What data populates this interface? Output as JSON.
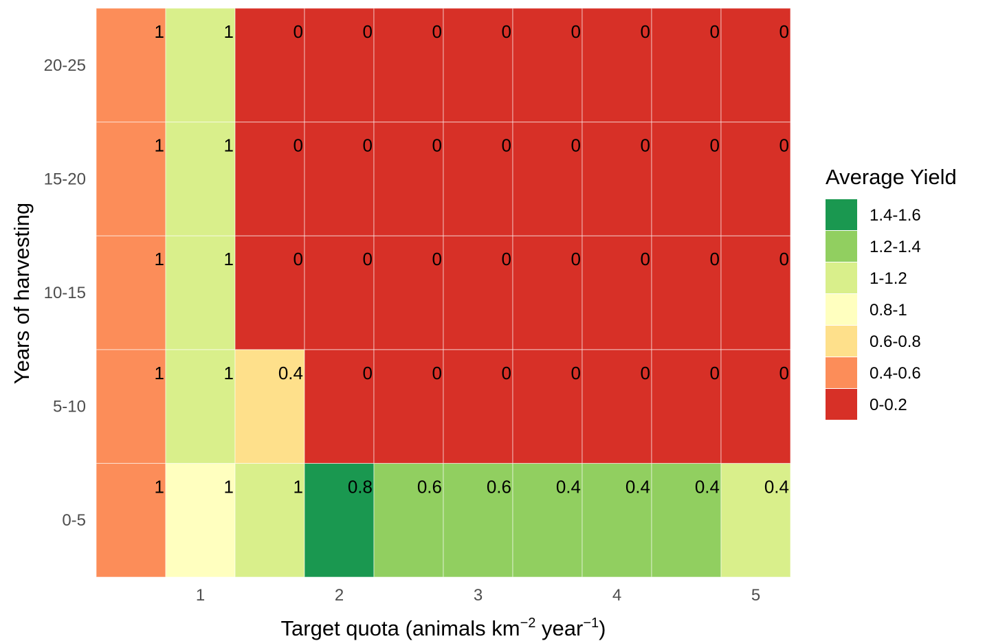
{
  "chart_data": {
    "type": "heatmap",
    "xlabel": {
      "base": "Target quota (animals km",
      "sup1": "−2",
      "mid": " year",
      "sup2": "−1",
      "end": ")"
    },
    "ylabel": "Years of harvesting",
    "x_ticks": [
      "1",
      "2",
      "3",
      "4",
      "5"
    ],
    "x_tick_values": [
      1,
      2,
      3,
      4,
      5
    ],
    "x_values": [
      0.5,
      1,
      1.5,
      2,
      2.5,
      3,
      3.5,
      4,
      4.5,
      5
    ],
    "y_categories": [
      "0-5",
      "5-10",
      "10-15",
      "15-20",
      "20-25"
    ],
    "rows": [
      {
        "y": "0-5",
        "labels": [
          "1",
          "1",
          "1",
          "0.8",
          "0.6",
          "0.6",
          "0.4",
          "0.4",
          "0.4",
          "0.4"
        ],
        "bins": [
          "0.4-0.6",
          "0.8-1",
          "1-1.2",
          "1.4-1.6",
          "1.2-1.4",
          "1.2-1.4",
          "1.2-1.4",
          "1.2-1.4",
          "1.2-1.4",
          "1-1.2"
        ]
      },
      {
        "y": "5-10",
        "labels": [
          "1",
          "1",
          "0.4",
          "0",
          "0",
          "0",
          "0",
          "0",
          "0",
          "0"
        ],
        "bins": [
          "0.4-0.6",
          "1-1.2",
          "0.6-0.8",
          "0-0.2",
          "0-0.2",
          "0-0.2",
          "0-0.2",
          "0-0.2",
          "0-0.2",
          "0-0.2"
        ]
      },
      {
        "y": "10-15",
        "labels": [
          "1",
          "1",
          "0",
          "0",
          "0",
          "0",
          "0",
          "0",
          "0",
          "0"
        ],
        "bins": [
          "0.4-0.6",
          "1-1.2",
          "0-0.2",
          "0-0.2",
          "0-0.2",
          "0-0.2",
          "0-0.2",
          "0-0.2",
          "0-0.2",
          "0-0.2"
        ]
      },
      {
        "y": "15-20",
        "labels": [
          "1",
          "1",
          "0",
          "0",
          "0",
          "0",
          "0",
          "0",
          "0",
          "0"
        ],
        "bins": [
          "0.4-0.6",
          "1-1.2",
          "0-0.2",
          "0-0.2",
          "0-0.2",
          "0-0.2",
          "0-0.2",
          "0-0.2",
          "0-0.2",
          "0-0.2"
        ]
      },
      {
        "y": "20-25",
        "labels": [
          "1",
          "1",
          "0",
          "0",
          "0",
          "0",
          "0",
          "0",
          "0",
          "0"
        ],
        "bins": [
          "0.4-0.6",
          "1-1.2",
          "0-0.2",
          "0-0.2",
          "0-0.2",
          "0-0.2",
          "0-0.2",
          "0-0.2",
          "0-0.2",
          "0-0.2"
        ]
      }
    ],
    "legend": {
      "title": "Average Yield",
      "position": "right",
      "items": [
        {
          "label": "1.4-1.6",
          "color": "#1a9850"
        },
        {
          "label": "1.2-1.4",
          "color": "#91cf60"
        },
        {
          "label": "1-1.2",
          "color": "#d9ef8b"
        },
        {
          "label": "0.8-1",
          "color": "#ffffbf"
        },
        {
          "label": "0.6-0.8",
          "color": "#fee08b"
        },
        {
          "label": "0.4-0.6",
          "color": "#fc8d59"
        },
        {
          "label": "0-0.2",
          "color": "#d73027"
        }
      ]
    },
    "grid": false
  }
}
